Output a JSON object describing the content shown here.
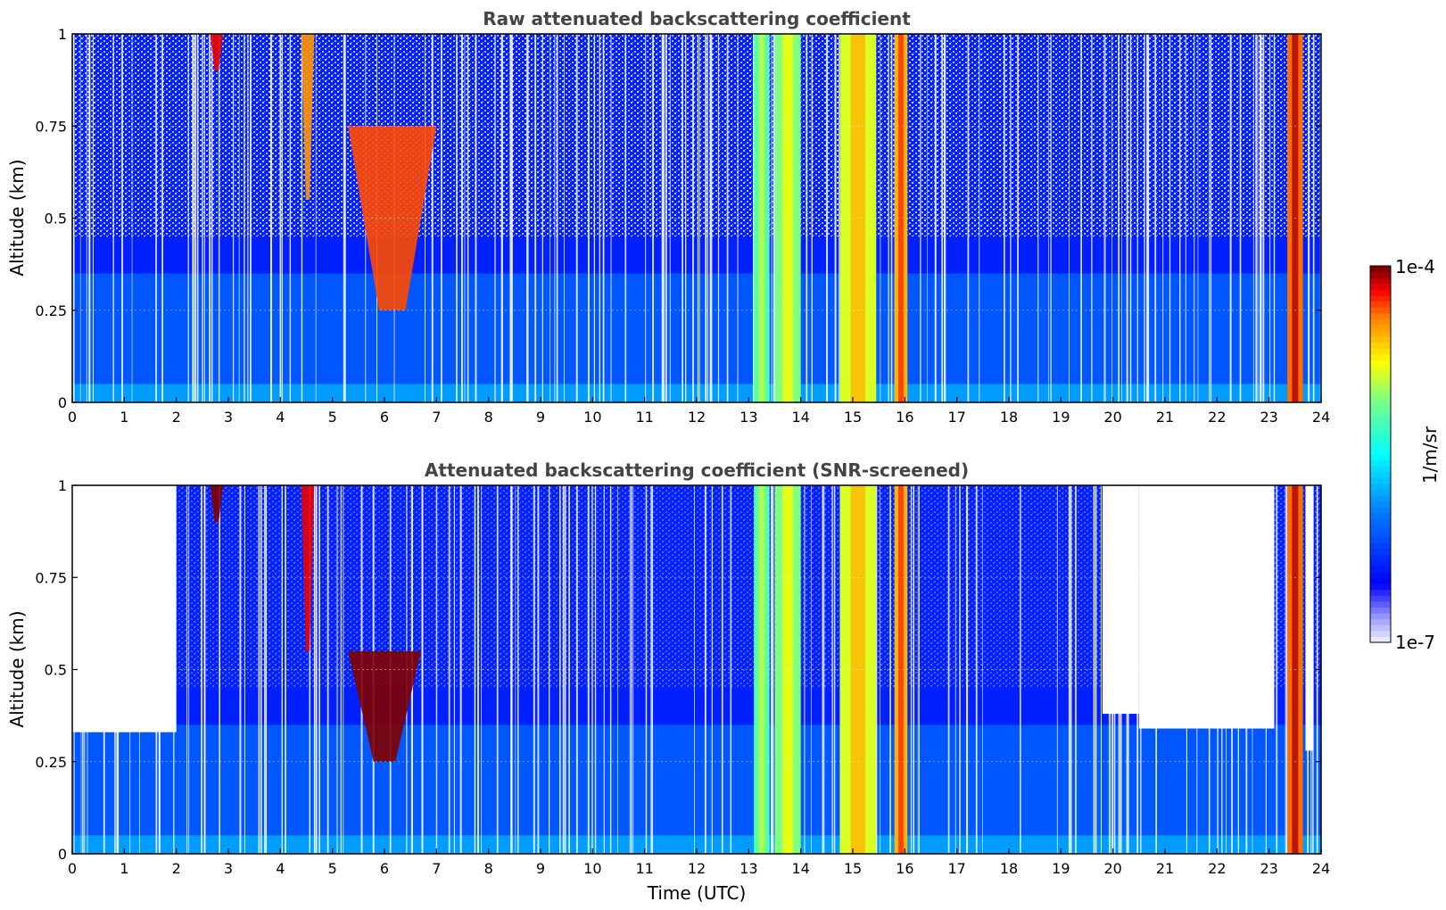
{
  "chart_data": [
    {
      "type": "heatmap",
      "title": "Raw attenuated backscattering coefficient",
      "xlabel": "",
      "ylabel": "Altitude (km)",
      "xlim": [
        0,
        24
      ],
      "ylim": [
        0,
        1
      ],
      "x_ticks": [
        "0",
        "1",
        "2",
        "3",
        "4",
        "5",
        "6",
        "7",
        "8",
        "9",
        "10",
        "11",
        "12",
        "13",
        "14",
        "15",
        "16",
        "17",
        "18",
        "19",
        "20",
        "21",
        "22",
        "23",
        "24"
      ],
      "y_ticks": [
        "0",
        "0.25",
        "0.5",
        "0.75",
        "1"
      ],
      "grid": true,
      "color_scale": "log",
      "value_range": [
        "1e-7",
        "1e-4"
      ],
      "features": [
        {
          "kind": "aerosol_layer",
          "x_range": [
            0,
            24
          ],
          "y_top": 0.35,
          "level": 0.3
        },
        {
          "kind": "cloud",
          "x_range": [
            2.65,
            2.9
          ],
          "y_range": [
            0.9,
            1.0
          ],
          "level": 0.95
        },
        {
          "kind": "cloud",
          "x_range": [
            4.4,
            4.65
          ],
          "y_range": [
            0.55,
            1.0
          ],
          "level": 0.85
        },
        {
          "kind": "cloud",
          "x_range": [
            5.3,
            7.0
          ],
          "y_range": [
            0.25,
            0.75
          ],
          "level": 0.9
        },
        {
          "kind": "rain",
          "x_range": [
            13.1,
            13.4
          ],
          "level": 0.6
        },
        {
          "kind": "rain",
          "x_range": [
            13.5,
            14.0
          ],
          "level": 0.65
        },
        {
          "kind": "rain",
          "x_range": [
            14.75,
            15.45
          ],
          "level": 0.72
        },
        {
          "kind": "rain",
          "x_range": [
            15.8,
            16.05
          ],
          "level": 0.82
        },
        {
          "kind": "rain",
          "x_range": [
            23.35,
            23.65
          ],
          "level": 0.88
        }
      ]
    },
    {
      "type": "heatmap",
      "title": "Attenuated backscattering coefficient (SNR-screened)",
      "xlabel": "Time (UTC)",
      "ylabel": "Altitude (km)",
      "xlim": [
        0,
        24
      ],
      "ylim": [
        0,
        1
      ],
      "x_ticks": [
        "0",
        "1",
        "2",
        "3",
        "4",
        "5",
        "6",
        "7",
        "8",
        "9",
        "10",
        "11",
        "12",
        "13",
        "14",
        "15",
        "16",
        "17",
        "18",
        "19",
        "20",
        "21",
        "22",
        "23",
        "24"
      ],
      "y_ticks": [
        "0",
        "0.25",
        "0.5",
        "0.75",
        "1"
      ],
      "grid": true,
      "color_scale": "log",
      "value_range": [
        "1e-7",
        "1e-4"
      ],
      "screened_top_km": [
        {
          "x_range": [
            0,
            2.0
          ],
          "y": 0.33
        },
        {
          "x_range": [
            19.8,
            20.5
          ],
          "y": 0.38
        },
        {
          "x_range": [
            20.5,
            23.1
          ],
          "y": 0.34
        },
        {
          "x_range": [
            23.7,
            23.85
          ],
          "y": 0.28
        }
      ],
      "features": [
        {
          "kind": "cloud",
          "x_range": [
            2.65,
            2.9
          ],
          "y_range": [
            0.9,
            1.0
          ],
          "level": 1.0
        },
        {
          "kind": "cloud",
          "x_range": [
            4.4,
            4.65
          ],
          "y_range": [
            0.55,
            1.0
          ],
          "level": 0.95
        },
        {
          "kind": "cloud",
          "x_range": [
            5.3,
            6.7
          ],
          "y_range": [
            0.25,
            0.55
          ],
          "level": 1.0
        },
        {
          "kind": "rain",
          "x_range": [
            13.1,
            13.4
          ],
          "level": 0.6
        },
        {
          "kind": "rain",
          "x_range": [
            13.5,
            14.0
          ],
          "level": 0.65
        },
        {
          "kind": "rain",
          "x_range": [
            14.75,
            15.45
          ],
          "level": 0.72
        },
        {
          "kind": "rain",
          "x_range": [
            15.8,
            16.05
          ],
          "level": 0.82
        },
        {
          "kind": "rain",
          "x_range": [
            23.35,
            23.65
          ],
          "level": 0.88
        }
      ]
    }
  ],
  "colorbar": {
    "label": "1/m/sr",
    "max_label": "1e-4",
    "min_label": "1e-7",
    "colormap": "jet",
    "low_color": "#e8e8ff",
    "high_color": "#800000"
  }
}
